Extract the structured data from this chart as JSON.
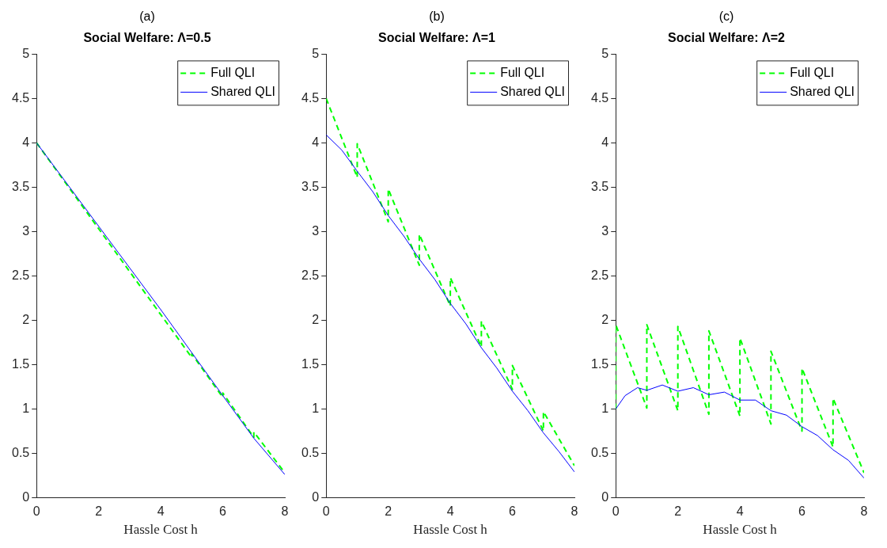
{
  "chart_data": [
    {
      "type": "line",
      "title": "(a)",
      "subtitle": "Social Welfare: Λ=0.5",
      "xlabel": "Hassle Cost h",
      "xlim": [
        0,
        8
      ],
      "xticks": [
        0,
        2,
        4,
        6,
        8
      ],
      "ylim": [
        0,
        5
      ],
      "yticks": [
        0,
        0.5,
        1,
        1.5,
        2,
        2.5,
        3,
        3.5,
        4,
        4.5,
        5
      ],
      "legend": "top right",
      "series": [
        {
          "name": "Full QLI",
          "color": "#00ff00",
          "line_style": "dashed",
          "x": [
            0,
            5,
            5,
            6,
            6,
            7,
            7,
            8
          ],
          "values": [
            4,
            1.58,
            1.62,
            1.13,
            1.18,
            0.68,
            0.74,
            0.28
          ]
        },
        {
          "name": "Shared QLI",
          "color": "#0000ff",
          "line_style": "solid",
          "x": [
            0,
            4,
            6,
            7,
            8
          ],
          "values": [
            4,
            2.12,
            1.15,
            0.67,
            0.26
          ]
        }
      ]
    },
    {
      "type": "line",
      "title": "(b)",
      "subtitle": "Social Welfare: Λ=1",
      "xlabel": "Hassle Cost h",
      "xlim": [
        0,
        8
      ],
      "xticks": [
        0,
        2,
        4,
        6,
        8
      ],
      "ylim": [
        0,
        5
      ],
      "yticks": [
        0,
        0.5,
        1,
        1.5,
        2,
        2.5,
        3,
        3.5,
        4,
        4.5,
        5
      ],
      "legend": "top right",
      "series": [
        {
          "name": "Full QLI",
          "color": "#00ff00",
          "line_style": "dashed",
          "x": [
            0,
            1,
            1,
            2,
            2,
            3,
            3,
            4,
            4,
            5,
            5,
            6,
            6,
            7,
            7,
            8
          ],
          "values": [
            4.5,
            3.61,
            3.99,
            3.11,
            3.48,
            2.62,
            2.97,
            2.16,
            2.48,
            1.7,
            1.99,
            1.22,
            1.49,
            0.75,
            0.97,
            0.36
          ]
        },
        {
          "name": "Shared QLI",
          "color": "#0000ff",
          "line_style": "solid",
          "x": [
            0,
            0.5,
            1,
            1.5,
            2,
            2.5,
            3,
            3.5,
            4,
            4.5,
            5,
            5.5,
            6,
            6.5,
            7,
            7.5,
            8
          ],
          "values": [
            4.09,
            3.92,
            3.68,
            3.45,
            3.18,
            2.95,
            2.69,
            2.46,
            2.19,
            1.96,
            1.69,
            1.46,
            1.2,
            0.98,
            0.73,
            0.52,
            0.29
          ]
        }
      ]
    },
    {
      "type": "line",
      "title": "(c)",
      "subtitle": "Social Welfare: Λ=2",
      "xlabel": "Hassle Cost h",
      "xlim": [
        0,
        8
      ],
      "xticks": [
        0,
        2,
        4,
        6,
        8
      ],
      "ylim": [
        0,
        5
      ],
      "yticks": [
        0,
        0.5,
        1,
        1.5,
        2,
        2.5,
        3,
        3.5,
        4,
        4.5,
        5
      ],
      "legend": "top right",
      "series": [
        {
          "name": "Full QLI",
          "color": "#00ff00",
          "line_style": "dashed",
          "x": [
            0,
            0,
            1,
            1,
            2,
            2,
            3,
            3,
            4,
            4,
            5,
            5,
            6,
            6,
            7,
            7,
            8
          ],
          "values": [
            1,
            1.95,
            1.01,
            1.95,
            0.98,
            1.93,
            0.94,
            1.88,
            0.92,
            1.8,
            0.83,
            1.65,
            0.75,
            1.46,
            0.57,
            1.12,
            0.28
          ]
        },
        {
          "name": "Shared QLI",
          "color": "#0000ff",
          "line_style": "solid",
          "x": [
            0,
            0.3,
            0.7,
            1,
            1.5,
            2,
            2.5,
            3,
            3.5,
            4,
            4.5,
            5,
            5.5,
            6,
            6.5,
            7,
            7.5,
            8
          ],
          "values": [
            1,
            1.15,
            1.24,
            1.21,
            1.27,
            1.2,
            1.24,
            1.16,
            1.19,
            1.1,
            1.1,
            0.98,
            0.93,
            0.8,
            0.7,
            0.54,
            0.42,
            0.22
          ]
        }
      ]
    }
  ]
}
